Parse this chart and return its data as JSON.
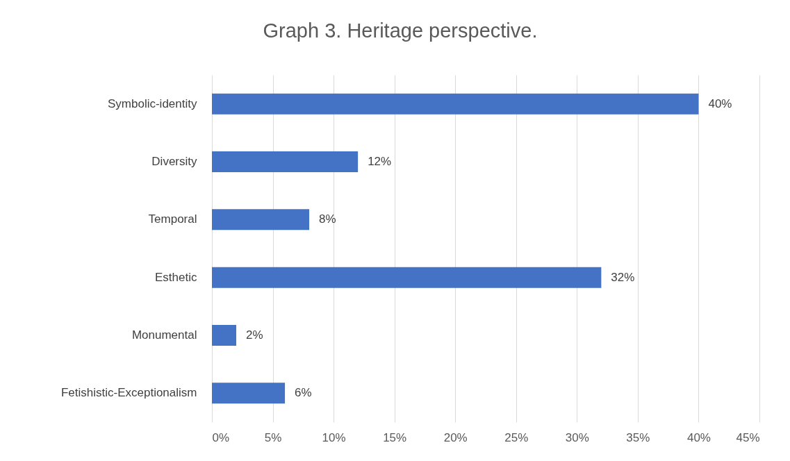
{
  "chart_data": {
    "type": "bar",
    "orientation": "horizontal",
    "title": "Graph 3. Heritage perspective.",
    "categories": [
      "Symbolic-identity",
      "Diversity",
      "Temporal",
      "Esthetic",
      "Monumental",
      "Fetishistic-Exceptionalism"
    ],
    "values": [
      40,
      12,
      8,
      32,
      2,
      6
    ],
    "value_labels": [
      "40%",
      "12%",
      "8%",
      "32%",
      "2%",
      "6%"
    ],
    "color": "#4472c4",
    "xlim": [
      0,
      45
    ],
    "xticks": [
      {
        "value": 0,
        "label": "0%"
      },
      {
        "value": 5,
        "label": "5%"
      },
      {
        "value": 10,
        "label": "10%"
      },
      {
        "value": 15,
        "label": "15%"
      },
      {
        "value": 20,
        "label": "20%"
      },
      {
        "value": 25,
        "label": "25%"
      },
      {
        "value": 30,
        "label": "30%"
      },
      {
        "value": 35,
        "label": "35%"
      },
      {
        "value": 40,
        "label": "40%"
      },
      {
        "value": 45,
        "label": "45%"
      }
    ],
    "grid": "x"
  }
}
